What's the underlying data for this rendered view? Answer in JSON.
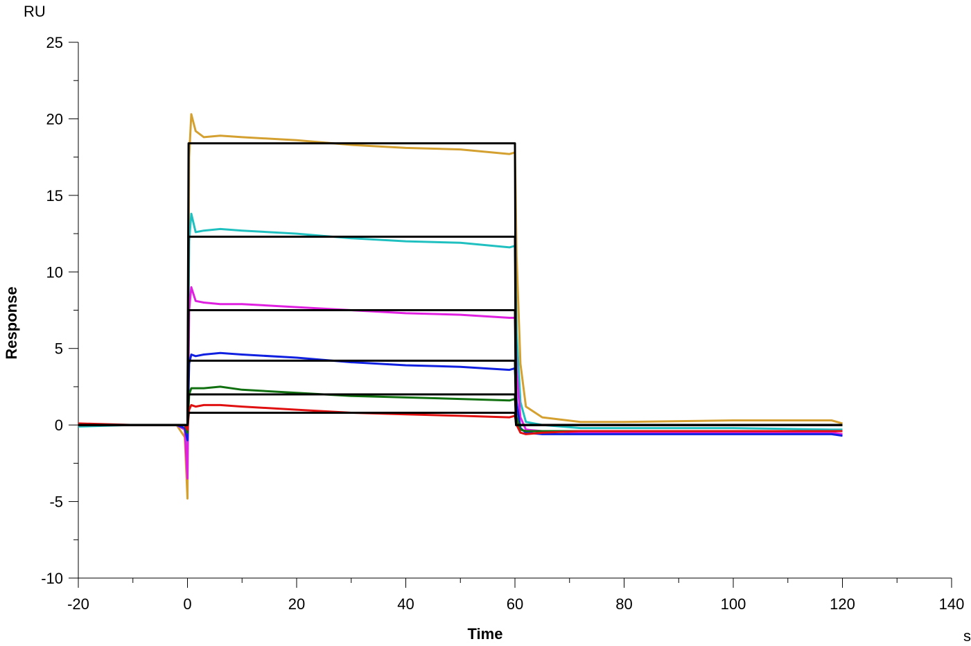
{
  "chart_data": {
    "type": "line",
    "title": "",
    "xlabel": "Time",
    "ylabel": "Response",
    "x_unit": "s",
    "y_unit": "RU",
    "xlim": [
      -20,
      140
    ],
    "ylim": [
      -10,
      25
    ],
    "x_ticks": [
      -20,
      0,
      20,
      40,
      60,
      80,
      100,
      120,
      140
    ],
    "y_ticks": [
      -10,
      -5,
      0,
      5,
      10,
      15,
      20,
      25
    ],
    "x_tick_labels": [
      "-20",
      "0",
      "20",
      "40",
      "60",
      "80",
      "100",
      "120",
      "140"
    ],
    "y_tick_labels": [
      "-10",
      "-5",
      "0",
      "5",
      "10",
      "15",
      "20",
      "25"
    ],
    "grid": false,
    "legend": "none",
    "series": [
      {
        "color": "#d4a030",
        "x": [
          -20,
          -10,
          -2,
          -0.5,
          0,
          0.3,
          0.7,
          1.5,
          3,
          6,
          10,
          20,
          30,
          40,
          50,
          59,
          60,
          60.3,
          61,
          62,
          65,
          72,
          80,
          100,
          118,
          120
        ],
        "y": [
          0,
          0,
          0,
          -0.8,
          -4.8,
          17.5,
          20.3,
          19.2,
          18.8,
          18.9,
          18.8,
          18.6,
          18.3,
          18.1,
          18.0,
          17.7,
          17.8,
          11,
          4,
          1.2,
          0.5,
          0.2,
          0.2,
          0.3,
          0.3,
          0.1
        ]
      },
      {
        "color": "#20c0c0",
        "x": [
          -20,
          -10,
          -2,
          -0.5,
          0,
          0.3,
          0.7,
          1.5,
          3,
          6,
          10,
          20,
          30,
          40,
          50,
          59,
          60,
          60.3,
          61,
          62,
          65,
          72,
          80,
          100,
          118,
          120
        ],
        "y": [
          -0.1,
          0,
          0,
          -0.3,
          -1.5,
          12.0,
          13.8,
          12.6,
          12.7,
          12.8,
          12.7,
          12.5,
          12.2,
          12.0,
          11.9,
          11.6,
          11.7,
          6,
          1.5,
          0.2,
          0,
          -0.2,
          -0.2,
          -0.2,
          -0.3,
          -0.3
        ]
      },
      {
        "color": "#e020e0",
        "x": [
          -20,
          -10,
          -2,
          -0.5,
          0,
          0.3,
          0.7,
          1.5,
          3,
          6,
          10,
          20,
          30,
          40,
          50,
          59,
          60,
          60.3,
          61,
          62,
          65,
          72,
          80,
          100,
          118,
          120
        ],
        "y": [
          0,
          0,
          0,
          -0.3,
          -3.5,
          7.5,
          9.0,
          8.1,
          8.0,
          7.9,
          7.9,
          7.7,
          7.5,
          7.3,
          7.2,
          7.0,
          7.0,
          3.5,
          0.5,
          -0.3,
          -0.4,
          -0.5,
          -0.5,
          -0.5,
          -0.5,
          -0.6
        ]
      },
      {
        "color": "#1020e0",
        "x": [
          -20,
          -10,
          -2,
          -0.5,
          0,
          0.3,
          0.7,
          1.5,
          3,
          6,
          10,
          20,
          30,
          40,
          50,
          59,
          60,
          60.3,
          61,
          62,
          65,
          72,
          80,
          100,
          118,
          120
        ],
        "y": [
          0,
          0,
          0,
          -0.2,
          -1.0,
          4.0,
          4.6,
          4.5,
          4.6,
          4.7,
          4.6,
          4.4,
          4.1,
          3.9,
          3.8,
          3.6,
          3.7,
          1.5,
          -0.2,
          -0.5,
          -0.6,
          -0.6,
          -0.6,
          -0.6,
          -0.6,
          -0.7
        ]
      },
      {
        "color": "#107010",
        "x": [
          -20,
          -10,
          -2,
          -0.5,
          0,
          0.3,
          0.7,
          1.5,
          3,
          6,
          10,
          20,
          30,
          40,
          50,
          59,
          60,
          60.3,
          61,
          62,
          65,
          72,
          80,
          100,
          118,
          120
        ],
        "y": [
          0,
          0,
          0,
          0,
          -0.5,
          2.0,
          2.4,
          2.4,
          2.4,
          2.5,
          2.3,
          2.1,
          1.9,
          1.8,
          1.7,
          1.6,
          1.7,
          0.5,
          -0.3,
          -0.4,
          -0.4,
          -0.4,
          -0.4,
          -0.4,
          -0.4,
          -0.4
        ]
      },
      {
        "color": "#e01010",
        "x": [
          -20,
          -10,
          -2,
          -0.5,
          0,
          0.3,
          0.7,
          1.5,
          3,
          6,
          10,
          20,
          30,
          40,
          50,
          59,
          60,
          60.3,
          61,
          62,
          65,
          72,
          80,
          100,
          118,
          120
        ],
        "y": [
          0.1,
          0,
          0,
          0,
          -0.3,
          1.0,
          1.3,
          1.2,
          1.3,
          1.3,
          1.2,
          1.0,
          0.8,
          0.7,
          0.6,
          0.5,
          0.6,
          0,
          -0.5,
          -0.6,
          -0.5,
          -0.4,
          -0.4,
          -0.4,
          -0.4,
          -0.4
        ]
      },
      {
        "color": "#000000",
        "x": [
          -20,
          0,
          0.2,
          60,
          60.2,
          120
        ],
        "y": [
          0,
          0,
          18.4,
          18.4,
          0,
          0
        ]
      },
      {
        "color": "#000000",
        "x": [
          -20,
          0,
          0.2,
          60,
          60.2,
          120
        ],
        "y": [
          0,
          0,
          12.3,
          12.3,
          0,
          0
        ]
      },
      {
        "color": "#000000",
        "x": [
          -20,
          0,
          0.2,
          60,
          60.2,
          120
        ],
        "y": [
          0,
          0,
          7.5,
          7.5,
          0,
          0
        ]
      },
      {
        "color": "#000000",
        "x": [
          -20,
          0,
          0.2,
          60,
          60.2,
          120
        ],
        "y": [
          0,
          0,
          4.2,
          4.2,
          0,
          0
        ]
      },
      {
        "color": "#000000",
        "x": [
          -20,
          0,
          0.2,
          60,
          60.2,
          120
        ],
        "y": [
          0,
          0,
          2.0,
          2.0,
          0,
          0
        ]
      },
      {
        "color": "#000000",
        "x": [
          -20,
          0,
          0.2,
          60,
          60.2,
          120
        ],
        "y": [
          0,
          0,
          0.8,
          0.8,
          0,
          0
        ]
      }
    ]
  }
}
